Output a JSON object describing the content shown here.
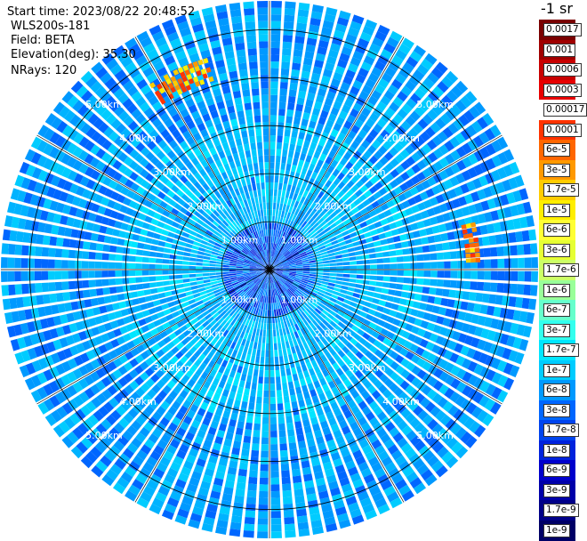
{
  "info": {
    "start_time": "Start time: 2023/08/22 20:48:52",
    "radar": "WLS200s-181",
    "field": "Field: BETA",
    "elevation": "Elevation(deg): 35.30",
    "nrays": "NRays: 120"
  },
  "colorbar": {
    "unit_label": "-1 sr",
    "labels": [
      "0.0017",
      "0.001",
      "0.0006",
      "0.0003",
      "0.00017",
      "0.0001",
      "6e-5",
      "3e-5",
      "1.7e-5",
      "1e-5",
      "6e-6",
      "3e-6",
      "1.7e-6",
      "1e-6",
      "6e-7",
      "3e-7",
      "1.7e-7",
      "1e-7",
      "6e-8",
      "3e-8",
      "1.7e-8",
      "1e-8",
      "6e-9",
      "3e-9",
      "1.7e-9",
      "1e-9"
    ],
    "colors": [
      "#7a0000",
      "#a00000",
      "#c80000",
      "#e80000",
      "#ffffff",
      "#ff3300",
      "#ff6600",
      "#ff9900",
      "#ffcc00",
      "#ffee00",
      "#ffff33",
      "#e6ff33",
      "#ccff66",
      "#99ff99",
      "#66ffcc",
      "#33ffee",
      "#00e6ff",
      "#00ccff",
      "#0099ff",
      "#0066ff",
      "#0044ee",
      "#0022dd",
      "#0000cc",
      "#0000aa",
      "#000088",
      "#000066"
    ]
  },
  "chart_data": {
    "type": "heatmap",
    "projection": "polar (PPI)",
    "field": "BETA",
    "elevation_deg": 35.3,
    "n_rays": 120,
    "range_rings_km": [
      1.0,
      2.0,
      3.0,
      4.0,
      5.0
    ],
    "ring_labels": [
      "1.00km",
      "2.00km",
      "3.00km",
      "4.00km",
      "5.00km"
    ],
    "spokes_deg": [
      0,
      30,
      60,
      90,
      120,
      150,
      180,
      210,
      240,
      270,
      300,
      330
    ],
    "max_range_km": 5.6,
    "dominant_range": [
      "3e-8",
      "1.7e-7"
    ],
    "features": [
      {
        "description": "high backscatter arc",
        "azimuth_deg": [
          327,
          343
        ],
        "range_km": [
          4.1,
          4.5
        ],
        "values": [
          "3e-5",
          "1.7e-5"
        ]
      },
      {
        "description": "high backscatter arc",
        "azimuth_deg": [
          77,
          87
        ],
        "range_km": [
          4.1,
          4.3
        ],
        "values": [
          "1e-5",
          "3e-5"
        ]
      },
      {
        "description": "elevated near-field",
        "range_km": [
          0.0,
          1.0
        ],
        "values": [
          "1.7e-8",
          "3e-8"
        ]
      }
    ]
  }
}
